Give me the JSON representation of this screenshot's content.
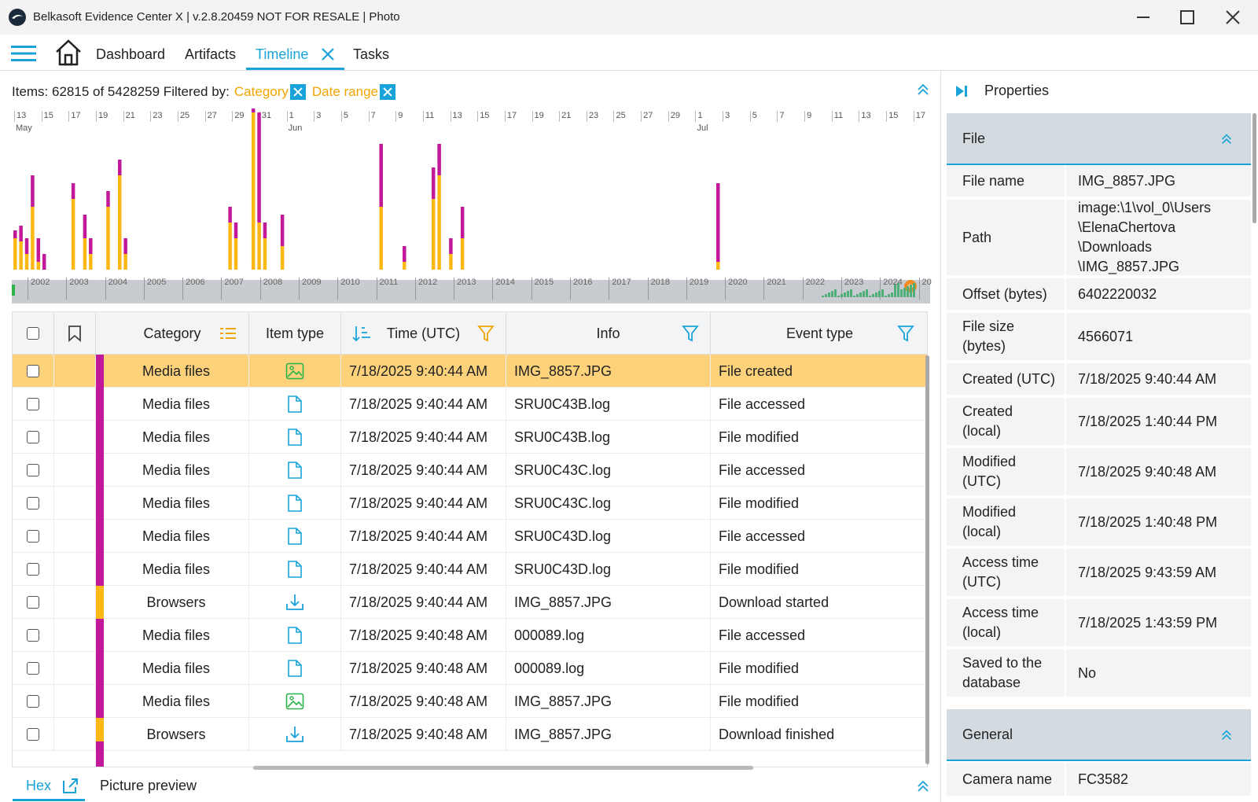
{
  "window": {
    "title": "Belkasoft Evidence Center X | v.2.8.20459 NOT FOR RESALE | Photo"
  },
  "nav": {
    "tabs": [
      "Dashboard",
      "Artifacts",
      "Timeline",
      "Tasks"
    ],
    "active": "Timeline"
  },
  "filter": {
    "items_text": "Items: 62815 of 5428259 Filtered by:",
    "chips": [
      "Category",
      "Date range"
    ]
  },
  "chart_data": {
    "type": "bar",
    "day_ticks": [
      "13",
      "15",
      "17",
      "19",
      "21",
      "23",
      "25",
      "27",
      "29",
      "31",
      "1",
      "3",
      "5",
      "7",
      "9",
      "11",
      "13",
      "15",
      "17",
      "19",
      "21",
      "23",
      "25",
      "27",
      "29",
      "1",
      "3",
      "5",
      "7",
      "9",
      "11",
      "13",
      "15",
      "17"
    ],
    "month_labels": [
      "May",
      "Jun",
      "Jul"
    ],
    "series": [
      {
        "name": "Browsers",
        "color": "#fbb714",
        "values": [
          20,
          18,
          10,
          40,
          5,
          0,
          0,
          0,
          0,
          0,
          45,
          0,
          20,
          10,
          0,
          0,
          40,
          0,
          60,
          10,
          0,
          0,
          0,
          0,
          0,
          0,
          0,
          0,
          0,
          0,
          0,
          0,
          0,
          0,
          0,
          0,
          0,
          30,
          20,
          0,
          0,
          100,
          30,
          20,
          0,
          0,
          15,
          0,
          0,
          0,
          0,
          0,
          0,
          0,
          0,
          0,
          0,
          0,
          0,
          0,
          0,
          0,
          0,
          40,
          0,
          0,
          0,
          5,
          0,
          0,
          0,
          0,
          45,
          60,
          0,
          10,
          0,
          20,
          0,
          0,
          0,
          0,
          0,
          0,
          0,
          0,
          0,
          0,
          0,
          0,
          0,
          0,
          0,
          0,
          0,
          0,
          0,
          0,
          0,
          0,
          0,
          0,
          0,
          0,
          0,
          0,
          0,
          0,
          0,
          0,
          0,
          0,
          0,
          0,
          0,
          0,
          0,
          0,
          0,
          0,
          0,
          5,
          0,
          0,
          0,
          0,
          0,
          0,
          0,
          0,
          0,
          0,
          0,
          0,
          0,
          0,
          0,
          0,
          0,
          0,
          0,
          0,
          0,
          0,
          0,
          0,
          0,
          0,
          0,
          0,
          0,
          0,
          0,
          0,
          0,
          0,
          0
        ]
      },
      {
        "name": "Media files",
        "color": "#c2189a",
        "values": [
          5,
          10,
          10,
          20,
          15,
          10,
          0,
          0,
          0,
          0,
          10,
          0,
          15,
          10,
          0,
          0,
          10,
          0,
          10,
          10,
          0,
          0,
          0,
          0,
          0,
          0,
          0,
          0,
          0,
          0,
          0,
          0,
          0,
          0,
          0,
          0,
          0,
          10,
          10,
          0,
          0,
          10,
          70,
          10,
          0,
          0,
          20,
          0,
          0,
          0,
          0,
          0,
          0,
          0,
          0,
          0,
          0,
          0,
          0,
          0,
          0,
          0,
          0,
          40,
          0,
          0,
          0,
          10,
          0,
          0,
          0,
          0,
          20,
          20,
          0,
          10,
          0,
          20,
          0,
          0,
          0,
          0,
          0,
          0,
          0,
          0,
          0,
          0,
          0,
          0,
          0,
          0,
          0,
          0,
          0,
          0,
          0,
          0,
          0,
          0,
          0,
          0,
          0,
          0,
          0,
          0,
          0,
          0,
          0,
          0,
          0,
          0,
          0,
          0,
          0,
          0,
          0,
          0,
          0,
          0,
          0,
          50,
          0,
          0,
          0,
          0,
          0,
          0,
          0,
          0,
          0,
          0,
          0,
          0,
          0,
          0,
          0,
          0,
          0,
          0,
          0,
          0,
          0,
          0,
          0,
          0,
          0,
          0,
          0,
          0,
          0,
          0,
          0,
          0,
          0,
          0,
          0
        ]
      }
    ],
    "overview_years": [
      "2002",
      "2003",
      "2004",
      "2005",
      "2006",
      "2007",
      "2008",
      "2009",
      "2010",
      "2011",
      "2012",
      "2013",
      "2014",
      "2015",
      "2016",
      "2017",
      "2018",
      "2019",
      "2020",
      "2021",
      "2022",
      "2023",
      "2024",
      "20"
    ]
  },
  "grid": {
    "headers": {
      "category": "Category",
      "item_type": "Item type",
      "time": "Time (UTC)",
      "info": "Info",
      "event_type": "Event type"
    },
    "rows": [
      {
        "category": "Media files",
        "cat_color": "#c2189a",
        "icon": "image-file-icon",
        "time": "7/18/2025 9:40:44 AM",
        "info": "IMG_8857.JPG",
        "event": "File created",
        "selected": true
      },
      {
        "category": "Media files",
        "cat_color": "#c2189a",
        "icon": "document-file-icon",
        "time": "7/18/2025 9:40:44 AM",
        "info": "SRU0C43B.log",
        "event": "File accessed"
      },
      {
        "category": "Media files",
        "cat_color": "#c2189a",
        "icon": "document-file-icon",
        "time": "7/18/2025 9:40:44 AM",
        "info": "SRU0C43B.log",
        "event": "File modified"
      },
      {
        "category": "Media files",
        "cat_color": "#c2189a",
        "icon": "document-file-icon",
        "time": "7/18/2025 9:40:44 AM",
        "info": "SRU0C43C.log",
        "event": "File accessed"
      },
      {
        "category": "Media files",
        "cat_color": "#c2189a",
        "icon": "document-file-icon",
        "time": "7/18/2025 9:40:44 AM",
        "info": "SRU0C43C.log",
        "event": "File modified"
      },
      {
        "category": "Media files",
        "cat_color": "#c2189a",
        "icon": "document-file-icon",
        "time": "7/18/2025 9:40:44 AM",
        "info": "SRU0C43D.log",
        "event": "File accessed"
      },
      {
        "category": "Media files",
        "cat_color": "#c2189a",
        "icon": "document-file-icon",
        "time": "7/18/2025 9:40:44 AM",
        "info": "SRU0C43D.log",
        "event": "File modified"
      },
      {
        "category": "Browsers",
        "cat_color": "#fbb714",
        "icon": "download-icon",
        "time": "7/18/2025 9:40:44 AM",
        "info": "IMG_8857.JPG",
        "event": "Download started"
      },
      {
        "category": "Media files",
        "cat_color": "#c2189a",
        "icon": "document-file-icon",
        "time": "7/18/2025 9:40:48 AM",
        "info": "000089.log",
        "event": "File accessed"
      },
      {
        "category": "Media files",
        "cat_color": "#c2189a",
        "icon": "document-file-icon",
        "time": "7/18/2025 9:40:48 AM",
        "info": "000089.log",
        "event": "File modified"
      },
      {
        "category": "Media files",
        "cat_color": "#c2189a",
        "icon": "image-file-icon",
        "time": "7/18/2025 9:40:48 AM",
        "info": "IMG_8857.JPG",
        "event": "File modified"
      },
      {
        "category": "Browsers",
        "cat_color": "#fbb714",
        "icon": "download-icon",
        "time": "7/18/2025 9:40:48 AM",
        "info": "IMG_8857.JPG",
        "event": "Download finished"
      }
    ]
  },
  "bottom": {
    "tabs": [
      "Hex",
      "Picture preview"
    ]
  },
  "properties": {
    "title": "Properties",
    "file_section": "File",
    "file_rows": [
      {
        "label": "File name",
        "value": "IMG_8857.JPG"
      },
      {
        "label": "Path",
        "value": "image:\\1\\vol_0\\Users\n\\ElenaChertova\n\\Downloads\n\\IMG_8857.JPG"
      },
      {
        "label": "Offset (bytes)",
        "value": "6402220032"
      },
      {
        "label": "File size\n(bytes)",
        "value": "4566071"
      },
      {
        "label": "Created (UTC)",
        "value": "7/18/2025 9:40:44 AM"
      },
      {
        "label": "Created\n(local)",
        "value": "7/18/2025 1:40:44 PM"
      },
      {
        "label": "Modified\n(UTC)",
        "value": "7/18/2025 9:40:48 AM"
      },
      {
        "label": "Modified\n(local)",
        "value": "7/18/2025 1:40:48 PM"
      },
      {
        "label": "Access time\n(UTC)",
        "value": "7/18/2025 9:43:59 AM"
      },
      {
        "label": "Access time\n(local)",
        "value": "7/18/2025 1:43:59 PM"
      },
      {
        "label": "Saved to the\ndatabase",
        "value": "No"
      }
    ],
    "general_section": "General",
    "general_rows": [
      {
        "label": "Camera name",
        "value": "FC3582"
      }
    ]
  },
  "colors": {
    "accent": "#19a3d9",
    "selected_row": "#fdd27b",
    "browsers": "#fbb714",
    "media": "#c2189a"
  }
}
